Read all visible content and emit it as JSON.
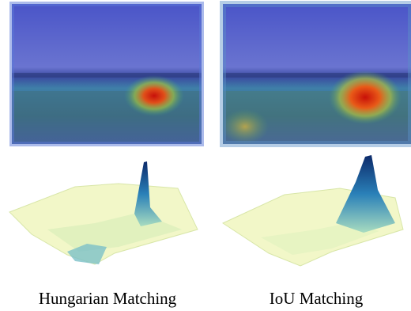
{
  "panels": [
    {
      "caption": "Hungarian Matching"
    },
    {
      "caption": "IoU Matching"
    }
  ]
}
